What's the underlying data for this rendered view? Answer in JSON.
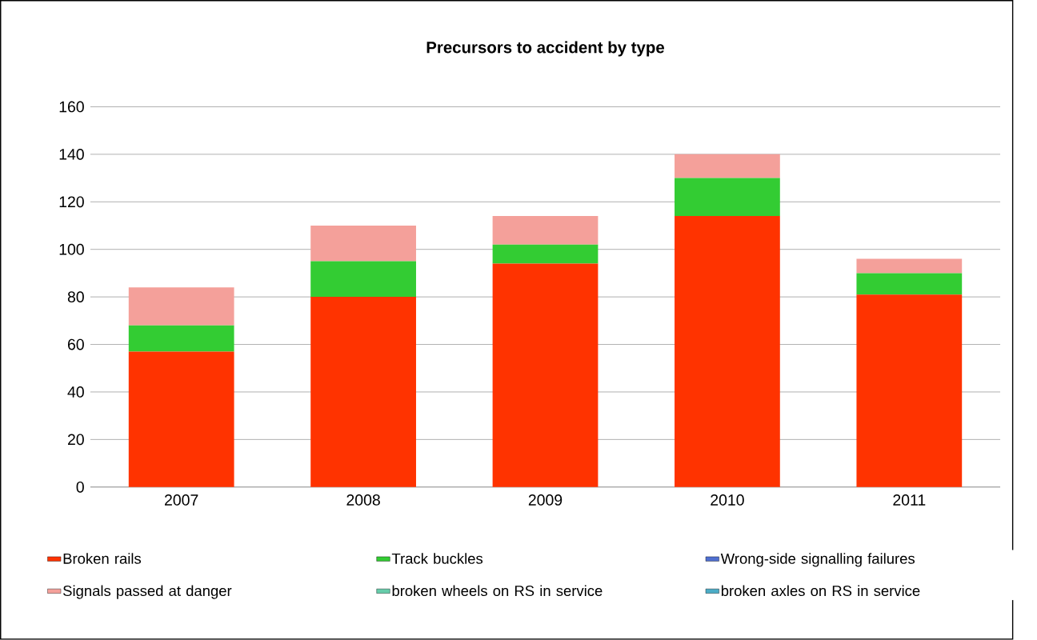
{
  "chart_data": {
    "type": "bar",
    "title": "Precursors to accident by type",
    "stacked": true,
    "categories": [
      "2007",
      "2008",
      "2009",
      "2010",
      "2011"
    ],
    "series": [
      {
        "name": "Broken rails",
        "color": "#ff3300",
        "values": [
          57,
          80,
          94,
          114,
          81
        ]
      },
      {
        "name": "Track buckles",
        "color": "#33cc33",
        "values": [
          11,
          15,
          8,
          16,
          9
        ]
      },
      {
        "name": "Wrong-side signalling failures",
        "color": "#4f6fd0",
        "values": [
          0,
          0,
          0,
          0,
          0
        ]
      },
      {
        "name": "Signals passed at danger",
        "color": "#f4a09a",
        "values": [
          16,
          15,
          12,
          10,
          6
        ]
      },
      {
        "name": "broken wheels on RS in service",
        "color": "#66ccaa",
        "values": [
          0,
          0,
          0,
          0,
          0
        ]
      },
      {
        "name": "broken axles on RS in service",
        "color": "#4bacc6",
        "values": [
          0,
          0,
          0,
          0,
          0
        ]
      }
    ],
    "ylim": [
      0,
      160
    ],
    "yticks": [
      0,
      20,
      40,
      60,
      80,
      100,
      120,
      140,
      160
    ],
    "grid": "y",
    "legend": "bottom"
  }
}
